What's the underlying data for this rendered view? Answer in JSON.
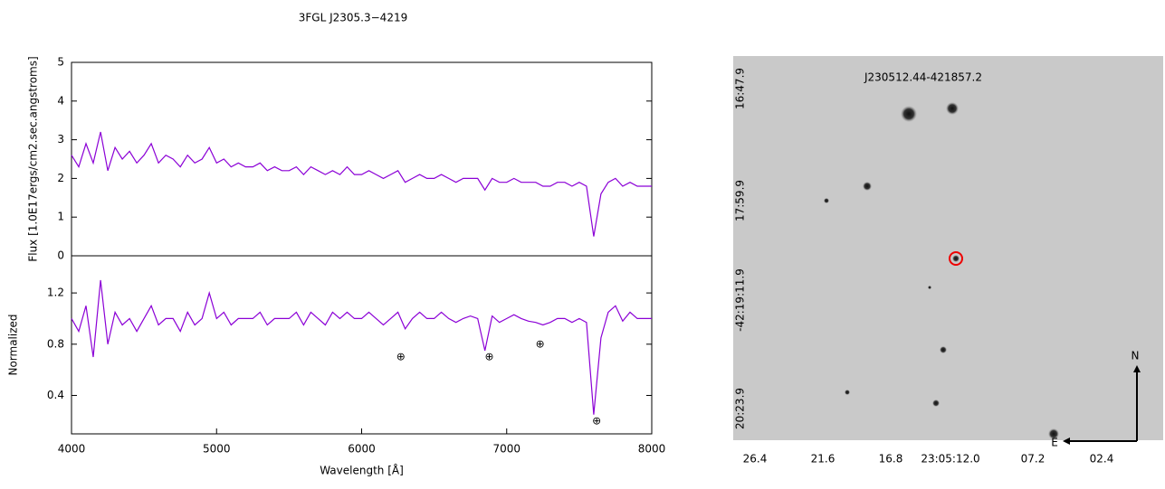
{
  "chart_data": [
    {
      "type": "line",
      "title": "3FGL J2305.3−4219",
      "ylabel": "Flux [1.0E17ergs/cm2.sec.angstroms]",
      "x": [
        4000,
        4050,
        4100,
        4150,
        4200,
        4250,
        4300,
        4350,
        4400,
        4450,
        4500,
        4550,
        4600,
        4650,
        4700,
        4750,
        4800,
        4850,
        4900,
        4950,
        5000,
        5050,
        5100,
        5150,
        5200,
        5250,
        5300,
        5350,
        5400,
        5450,
        5500,
        5550,
        5600,
        5650,
        5700,
        5750,
        5800,
        5850,
        5900,
        5950,
        6000,
        6050,
        6100,
        6150,
        6200,
        6250,
        6300,
        6350,
        6400,
        6450,
        6500,
        6550,
        6600,
        6650,
        6700,
        6750,
        6800,
        6850,
        6900,
        6950,
        7000,
        7050,
        7100,
        7150,
        7200,
        7250,
        7300,
        7350,
        7400,
        7450,
        7500,
        7550,
        7600,
        7650,
        7700,
        7750,
        7800,
        7850,
        7900,
        7950,
        8000
      ],
      "series": [
        {
          "color": "#8b00d6",
          "values": [
            2.6,
            2.3,
            2.9,
            2.4,
            3.2,
            2.2,
            2.8,
            2.5,
            2.7,
            2.4,
            2.6,
            2.9,
            2.4,
            2.6,
            2.5,
            2.3,
            2.6,
            2.4,
            2.5,
            2.8,
            2.4,
            2.5,
            2.3,
            2.4,
            2.3,
            2.3,
            2.4,
            2.2,
            2.3,
            2.2,
            2.2,
            2.3,
            2.1,
            2.3,
            2.2,
            2.1,
            2.2,
            2.1,
            2.3,
            2.1,
            2.1,
            2.2,
            2.1,
            2.0,
            2.1,
            2.2,
            1.9,
            2.0,
            2.1,
            2.0,
            2.0,
            2.1,
            2.0,
            1.9,
            2.0,
            2.0,
            2.0,
            1.7,
            2.0,
            1.9,
            1.9,
            2.0,
            1.9,
            1.9,
            1.9,
            1.8,
            1.8,
            1.9,
            1.9,
            1.8,
            1.9,
            1.8,
            0.5,
            1.6,
            1.9,
            2.0,
            1.8,
            1.9,
            1.8,
            1.8,
            1.8
          ]
        }
      ],
      "xlim": [
        4000,
        8000
      ],
      "ylim": [
        0,
        5
      ],
      "yticks": [
        0,
        1,
        2,
        3,
        4,
        5
      ]
    },
    {
      "type": "line",
      "ylabel": "Normalized",
      "xlabel": "Wavelength [Å]",
      "x": [
        4000,
        4050,
        4100,
        4150,
        4200,
        4250,
        4300,
        4350,
        4400,
        4450,
        4500,
        4550,
        4600,
        4650,
        4700,
        4750,
        4800,
        4850,
        4900,
        4950,
        5000,
        5050,
        5100,
        5150,
        5200,
        5250,
        5300,
        5350,
        5400,
        5450,
        5500,
        5550,
        5600,
        5650,
        5700,
        5750,
        5800,
        5850,
        5900,
        5950,
        6000,
        6050,
        6100,
        6150,
        6200,
        6250,
        6300,
        6350,
        6400,
        6450,
        6500,
        6550,
        6600,
        6650,
        6700,
        6750,
        6800,
        6850,
        6900,
        6950,
        7000,
        7050,
        7100,
        7150,
        7200,
        7250,
        7300,
        7350,
        7400,
        7450,
        7500,
        7550,
        7600,
        7650,
        7700,
        7750,
        7800,
        7850,
        7900,
        7950,
        8000
      ],
      "series": [
        {
          "color": "#8b00d6",
          "values": [
            1.0,
            0.9,
            1.1,
            0.7,
            1.3,
            0.8,
            1.05,
            0.95,
            1.0,
            0.9,
            1.0,
            1.1,
            0.95,
            1.0,
            1.0,
            0.9,
            1.05,
            0.95,
            1.0,
            1.2,
            1.0,
            1.05,
            0.95,
            1.0,
            1.0,
            1.0,
            1.05,
            0.95,
            1.0,
            1.0,
            1.0,
            1.05,
            0.95,
            1.05,
            1.0,
            0.95,
            1.05,
            1.0,
            1.05,
            1.0,
            1.0,
            1.05,
            1.0,
            0.95,
            1.0,
            1.05,
            0.92,
            1.0,
            1.05,
            1.0,
            1.0,
            1.05,
            1.0,
            0.97,
            1.0,
            1.02,
            1.0,
            0.75,
            1.02,
            0.97,
            1.0,
            1.03,
            1.0,
            0.98,
            0.97,
            0.95,
            0.97,
            1.0,
            1.0,
            0.97,
            1.0,
            0.97,
            0.25,
            0.85,
            1.05,
            1.1,
            0.98,
            1.05,
            1.0,
            1.0,
            1.0
          ]
        }
      ],
      "xlim": [
        4000,
        8000
      ],
      "xticks": [
        4000,
        5000,
        6000,
        7000,
        8000
      ],
      "ylim": [
        0.1,
        1.49
      ],
      "yticks": [
        0.4,
        0.8,
        1.2
      ],
      "annotations": [
        {
          "text": "⊕",
          "x": 6270,
          "y": 0.7
        },
        {
          "text": "⊕",
          "x": 6880,
          "y": 0.7
        },
        {
          "text": "⊕",
          "x": 7230,
          "y": 0.8
        },
        {
          "text": "⊕",
          "x": 7620,
          "y": 0.2
        }
      ]
    },
    {
      "type": "image",
      "title": "J230512.44-421857.2",
      "xticklabels": [
        "26.4",
        "21.6",
        "16.8",
        "23:05:12.0",
        "07.2",
        "02.4"
      ],
      "yticklabels": [
        "16:47.9",
        "17:59.9",
        "-42:19:11.9",
        "20:23.9"
      ],
      "compass": [
        "N",
        "E"
      ]
    }
  ]
}
